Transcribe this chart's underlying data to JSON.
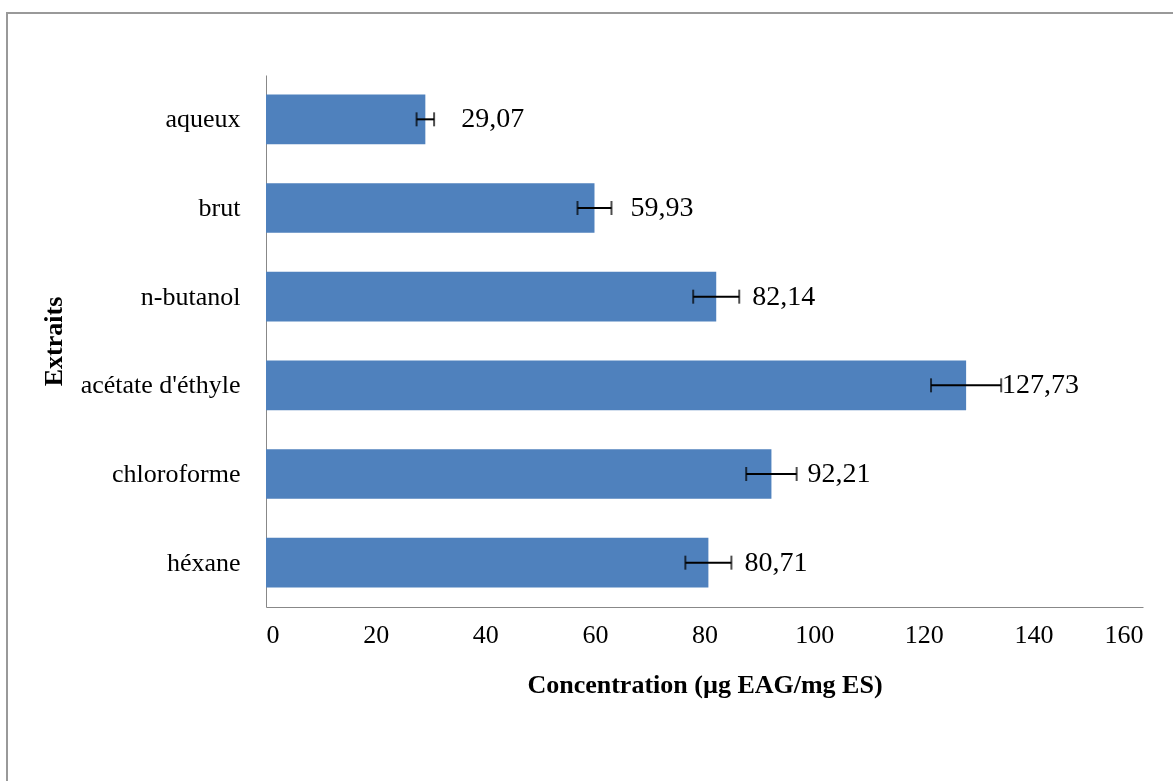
{
  "chart_data": {
    "type": "bar",
    "orientation": "horizontal",
    "xlabel": "Concentration (µg EAG/mg ES)",
    "ylabel": "Extraits",
    "categories": [
      "aqueux",
      "brut",
      "n-butanol",
      "acétate d'éthyle",
      "chloroforme",
      "héxane"
    ],
    "values": [
      29.07,
      59.93,
      82.14,
      127.73,
      92.21,
      80.71
    ],
    "errors": [
      1.6,
      3.1,
      4.2,
      6.4,
      4.6,
      4.2
    ],
    "value_labels": [
      "29,07",
      "59,93",
      "82,14",
      "127,73",
      "92,21",
      "80,71"
    ],
    "color": "#4f81bd",
    "xlim": [
      0,
      160
    ],
    "xticks": [
      0,
      20,
      40,
      60,
      80,
      100,
      120,
      140,
      160
    ],
    "grid": false
  }
}
